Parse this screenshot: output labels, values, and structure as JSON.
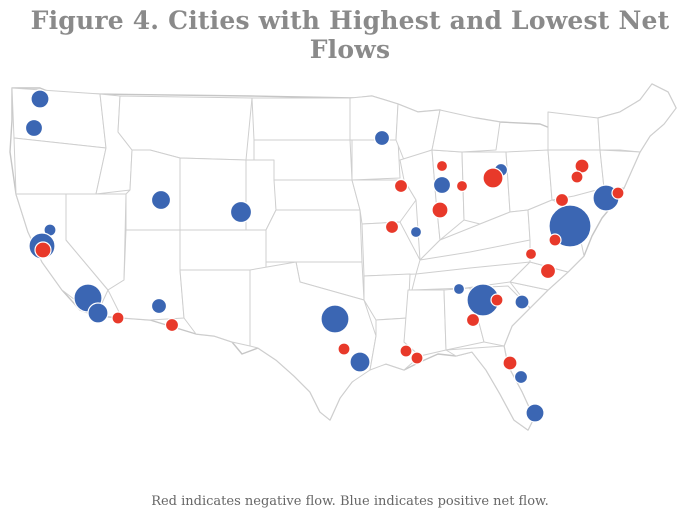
{
  "title": "Figure 4. Cities with Highest and Lowest Net Flows",
  "caption": "Red indicates negative flow. Blue indicates positive net flow.",
  "colors": {
    "negative": "#e8392a",
    "positive": "#3b66b3",
    "land": "#ffffff",
    "border": "#cfcfcf"
  }
}
